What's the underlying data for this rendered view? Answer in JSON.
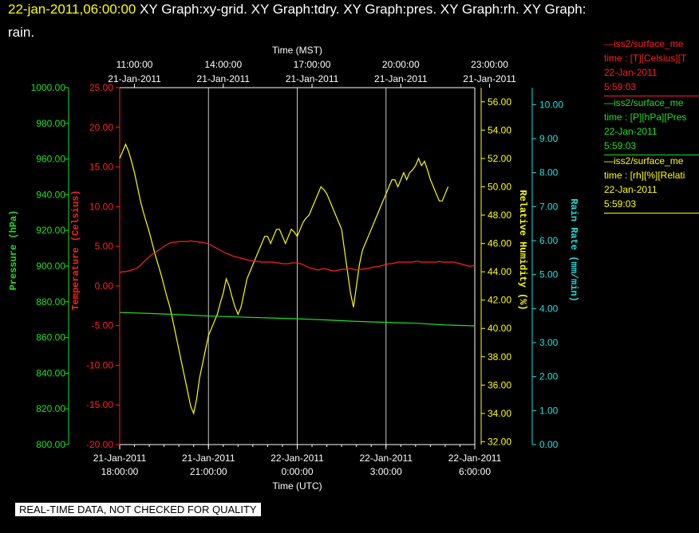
{
  "header": {
    "time": "22-jan-2011,06:00:00",
    "line1_rest": " XY Graph:xy-grid.  XY Graph:tdry.  XY Graph:pres.  XY Graph:rh.  XY Graph:",
    "line2": "rain."
  },
  "footer_note": "REAL-TIME DATA, NOT CHECKED FOR QUALITY",
  "legend": [
    {
      "name": "—iss2/surface_me",
      "line2": "time : [T][Celsius][T",
      "date": "22-Jan-2011",
      "time": "5:59:03",
      "color": "#ff2020"
    },
    {
      "name": "—iss2/surface_me",
      "line2": "time : [P][hPa][Pres",
      "date": "22-Jan-2011",
      "time": "5:59:03",
      "color": "#20e020"
    },
    {
      "name": "—iss2/surface_me",
      "line2": "time : [rh][%][Relati",
      "date": "22-Jan-2011",
      "time": "5:59:03",
      "color": "#ffff00"
    }
  ],
  "chart_data": {
    "type": "line",
    "top_axis": {
      "title": "Time (MST)",
      "ticks": [
        {
          "x": 0.5,
          "time": "11:00:00",
          "date": "21-Jan-2011"
        },
        {
          "x": 3.5,
          "time": "14:00:00",
          "date": "21-Jan-2011"
        },
        {
          "x": 6.5,
          "time": "17:00:00",
          "date": "21-Jan-2011"
        },
        {
          "x": 9.5,
          "time": "20:00:00",
          "date": "21-Jan-2011"
        },
        {
          "x": 12.5,
          "time": "23:00:00",
          "date": "21-Jan-2011"
        }
      ]
    },
    "bottom_axis": {
      "title": "Time (UTC)",
      "ticks": [
        {
          "x": 0,
          "date": "21-Jan-2011",
          "time": "18:00:00"
        },
        {
          "x": 3,
          "date": "21-Jan-2011",
          "time": "21:00:00"
        },
        {
          "x": 6,
          "date": "22-Jan-2011",
          "time": "0:00:00"
        },
        {
          "x": 9,
          "date": "22-Jan-2011",
          "time": "3:00:00"
        },
        {
          "x": 12,
          "date": "22-Jan-2011",
          "time": "6:00:00"
        }
      ],
      "range": [
        0,
        12
      ],
      "grid": true
    },
    "axes": {
      "pressure": {
        "label": "Pressure (hPa)",
        "color": "#20e020",
        "range": [
          800,
          1000
        ],
        "ticks": [
          "800.00",
          "820.00",
          "840.00",
          "860.00",
          "880.00",
          "900.00",
          "920.00",
          "940.00",
          "960.00",
          "980.00",
          "1000.00"
        ]
      },
      "temperature": {
        "label": "Temperature (Celsius)",
        "color": "#ff2020",
        "range": [
          -20,
          25
        ],
        "ticks": [
          "-20.00",
          "-15.00",
          "-10.00",
          "-5.00",
          "0.00",
          "5.00",
          "10.00",
          "15.00",
          "20.00",
          "25.00"
        ]
      },
      "humidity": {
        "label": "Relative Humidity (%)",
        "color": "#ffff00",
        "range": [
          31.8,
          57.0
        ],
        "ticks": [
          "32.00",
          "34.00",
          "36.00",
          "38.00",
          "40.00",
          "42.00",
          "44.00",
          "46.00",
          "48.00",
          "50.00",
          "52.00",
          "54.00",
          "56.00"
        ]
      },
      "rain": {
        "label": "Rain Rate (mm/min)",
        "color": "#20e0e0",
        "range": [
          0,
          10.5
        ],
        "ticks": [
          "0.00",
          "1.00",
          "2.00",
          "3.00",
          "4.00",
          "5.00",
          "6.00",
          "7.00",
          "8.00",
          "9.00",
          "10.00"
        ]
      }
    },
    "series": [
      {
        "axis": "humidity",
        "color": "#ffff00",
        "x_step": 0.1,
        "values": [
          52.0,
          52.5,
          53.0,
          52.5,
          51.8,
          51.0,
          50.0,
          49.0,
          48.2,
          47.5,
          46.8,
          46.0,
          45.2,
          44.5,
          43.8,
          43.0,
          42.2,
          41.5,
          40.5,
          39.5,
          38.5,
          37.5,
          36.5,
          35.5,
          34.5,
          34.0,
          35.0,
          36.5,
          37.5,
          38.5,
          39.5,
          40.0,
          40.5,
          41.0,
          41.8,
          42.5,
          43.5,
          43.0,
          42.2,
          41.5,
          41.0,
          41.5,
          42.5,
          43.5,
          44.0,
          44.5,
          45.0,
          45.5,
          46.0,
          46.5,
          46.5,
          46.0,
          46.5,
          47.0,
          47.0,
          46.5,
          46.0,
          46.5,
          47.0,
          46.8,
          46.5,
          47.0,
          47.5,
          47.8,
          48.0,
          48.5,
          49.0,
          49.5,
          50.0,
          49.8,
          49.5,
          49.0,
          48.5,
          48.0,
          47.5,
          47.0,
          45.5,
          44.0,
          42.5,
          41.5,
          43.0,
          44.5,
          45.5,
          46.0,
          46.5,
          47.0,
          47.5,
          48.0,
          48.5,
          49.0,
          49.5,
          50.0,
          50.5,
          50.5,
          50.0,
          50.5,
          51.0,
          50.5,
          51.0,
          51.2,
          51.5,
          52.0,
          51.5,
          51.8,
          51.2,
          50.5,
          50.0,
          49.5,
          49.0,
          49.0,
          49.5,
          50.0
        ]
      },
      {
        "axis": "temperature",
        "color": "#ff2020",
        "x_step": 0.1,
        "values": [
          1.7,
          1.8,
          1.8,
          1.9,
          2.0,
          2.1,
          2.3,
          2.6,
          3.0,
          3.3,
          3.7,
          4.0,
          4.2,
          4.5,
          4.7,
          5.0,
          5.2,
          5.4,
          5.5,
          5.5,
          5.6,
          5.6,
          5.6,
          5.6,
          5.7,
          5.6,
          5.6,
          5.5,
          5.5,
          5.4,
          5.3,
          5.1,
          4.9,
          4.7,
          4.5,
          4.3,
          4.1,
          4.0,
          3.8,
          3.7,
          3.6,
          3.5,
          3.4,
          3.3,
          3.2,
          3.2,
          3.1,
          3.1,
          3.0,
          3.0,
          3.0,
          3.0,
          3.0,
          2.9,
          2.9,
          2.8,
          2.8,
          2.8,
          2.9,
          2.9,
          2.9,
          2.8,
          2.7,
          2.5,
          2.3,
          2.2,
          2.1,
          2.0,
          2.1,
          2.2,
          2.1,
          2.0,
          1.9,
          1.9,
          2.0,
          2.1,
          2.1,
          2.1,
          2.2,
          2.1,
          2.0,
          2.1,
          2.1,
          2.2,
          2.2,
          2.3,
          2.4,
          2.4,
          2.5,
          2.6,
          2.7,
          2.8,
          2.8,
          2.9,
          3.0,
          3.0,
          3.0,
          3.0,
          3.0,
          3.0,
          3.1,
          3.1,
          3.0,
          3.0,
          3.0,
          3.0,
          3.0,
          3.0,
          3.1,
          3.0,
          3.0,
          3.0,
          3.0,
          3.0,
          2.9,
          2.8,
          2.7,
          2.6,
          2.5,
          2.5,
          2.6
        ]
      },
      {
        "axis": "pressure",
        "color": "#20e020",
        "x_step": 1,
        "values": [
          874.0,
          873.5,
          872.8,
          872.0,
          871.5,
          871.0,
          870.5,
          869.8,
          869.0,
          868.5,
          868.0,
          867.0,
          866.5
        ]
      }
    ]
  }
}
